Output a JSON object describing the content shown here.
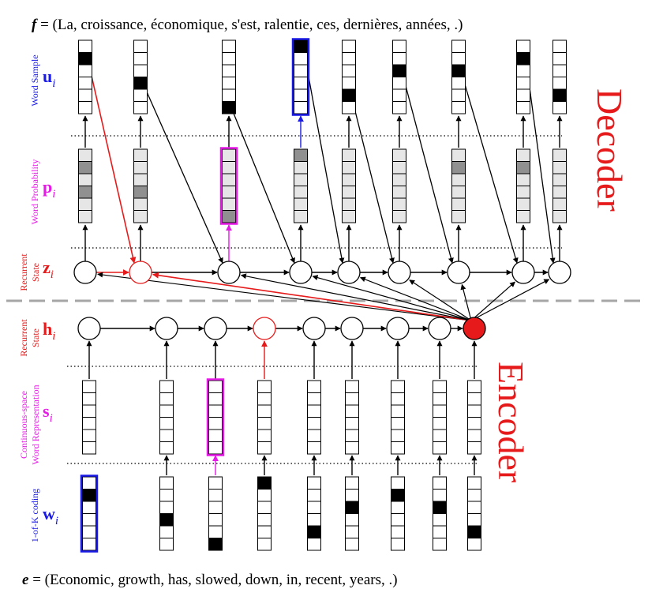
{
  "header": {
    "symbol": "f",
    "rest": " = (La, croissance, économique, s'est, ralentie, ces, dernières, années, .)"
  },
  "footer": {
    "symbol": "e",
    "rest": " = (Economic, growth, has, slowed, down, in, recent, years, .)"
  },
  "titles": {
    "decoder": "Decoder",
    "encoder": "Encoder"
  },
  "rows": {
    "u": {
      "symbol": "u",
      "sub": "i",
      "side_label": "Word Sample",
      "color": "#1a1ae6"
    },
    "p": {
      "symbol": "p",
      "sub": "i",
      "side_label": "Word Probability",
      "color": "#e61ae6"
    },
    "z": {
      "symbol": "z",
      "sub": "i",
      "side_label": [
        "Recurrent",
        "State"
      ],
      "color": "#e61a1a"
    },
    "h": {
      "symbol": "h",
      "sub": "i",
      "side_label": [
        "Recurrent",
        "State"
      ],
      "color": "#e61a1a"
    },
    "s": {
      "symbol": "s",
      "sub": "i",
      "side_label": [
        "Continuous-space",
        "Word Representation"
      ],
      "color": "#e61ae6"
    },
    "w": {
      "symbol": "w",
      "sub": "i",
      "side_label": "1-of-K coding",
      "color": "#1a1ae6"
    }
  },
  "colors": {
    "red": "#e61a1a",
    "magenta": "#e61ae6",
    "blue": "#1a1ae6",
    "black": "#000000",
    "dark_gray": "#909090",
    "light_gray": "#e6e6e6",
    "divider": "#a6a6a6"
  },
  "encoder": {
    "steps": 9,
    "one_hot_index": [
      1,
      3,
      5,
      0,
      4,
      2,
      1,
      2,
      4
    ],
    "highlight_w_step": 0,
    "highlight_s_step": 2,
    "red_state_step": 3,
    "filled_summary_state": true
  },
  "decoder": {
    "steps": 9,
    "sample_index": [
      1,
      3,
      5,
      0,
      4,
      2,
      2,
      1,
      4
    ],
    "highlight_u_step": 3,
    "highlight_p_step": 2,
    "red_state_step": 1,
    "prob_shades": [
      [
        "light",
        "dark",
        "light",
        "dark",
        "light",
        "light"
      ],
      [
        "light",
        "light",
        "light",
        "dark",
        "light",
        "light"
      ],
      [
        "light",
        "light",
        "light",
        "light",
        "light",
        "dark"
      ],
      [
        "dark",
        "light",
        "light",
        "light",
        "light",
        "light"
      ],
      [
        "light",
        "light",
        "light",
        "light",
        "light",
        "light"
      ],
      [
        "light",
        "light",
        "light",
        "light",
        "light",
        "light"
      ],
      [
        "light",
        "dark",
        "light",
        "light",
        "light",
        "light"
      ],
      [
        "light",
        "dark",
        "light",
        "light",
        "light",
        "light"
      ],
      [
        "light",
        "light",
        "light",
        "light",
        "light",
        "light"
      ]
    ]
  }
}
